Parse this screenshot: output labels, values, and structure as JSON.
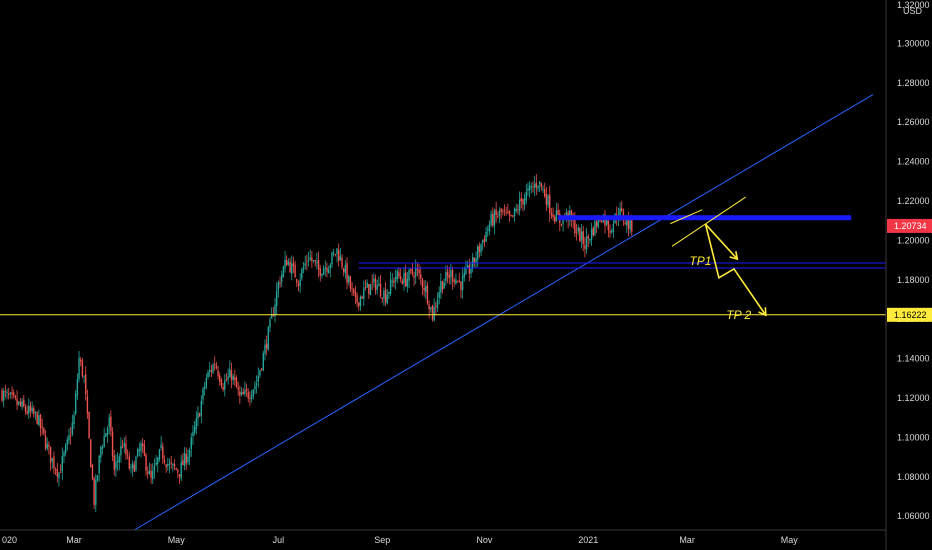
{
  "chart_data": {
    "type": "candlestick",
    "currency_label": "USD",
    "ylim": [
      1.053,
      1.322
    ],
    "y_ticks": [
      "1.06000",
      "1.08000",
      "1.10000",
      "1.12000",
      "1.14000",
      "1.16000",
      "1.18000",
      "1.20000",
      "1.22000",
      "1.24000",
      "1.26000",
      "1.28000",
      "1.30000"
    ],
    "y_top_partial_label": "1.32000",
    "x_labels": [
      {
        "label": "020",
        "t": 0
      },
      {
        "label": "Mar",
        "t": 43
      },
      {
        "label": "May",
        "t": 104
      },
      {
        "label": "Jul",
        "t": 165
      },
      {
        "label": "Sep",
        "t": 227
      },
      {
        "label": "Nov",
        "t": 288
      },
      {
        "label": "2021",
        "t": 350
      },
      {
        "label": "Mar",
        "t": 409
      },
      {
        "label": "May",
        "t": 470
      }
    ],
    "price_badges": [
      {
        "label": "1.20734",
        "value": 1.20734,
        "color": "#f23645"
      },
      {
        "label": "1.16222",
        "value": 1.16222,
        "color": "#ffeb3b"
      }
    ],
    "colors": {
      "up": "#26a69a",
      "down": "#ef5350",
      "trendline": "#2962ff",
      "resistance": "#1a1aff",
      "level": "#ffeb3b",
      "annotation": "#ffeb3b"
    },
    "anchors": [
      {
        "t": 0,
        "p": 1.123
      },
      {
        "t": 10,
        "p": 1.117
      },
      {
        "t": 22,
        "p": 1.11
      },
      {
        "t": 30,
        "p": 1.09
      },
      {
        "t": 35,
        "p": 1.082
      },
      {
        "t": 40,
        "p": 1.096
      },
      {
        "t": 44,
        "p": 1.11
      },
      {
        "t": 47,
        "p": 1.14
      },
      {
        "t": 50,
        "p": 1.13
      },
      {
        "t": 53,
        "p": 1.098
      },
      {
        "t": 56,
        "p": 1.068
      },
      {
        "t": 60,
        "p": 1.095
      },
      {
        "t": 65,
        "p": 1.108
      },
      {
        "t": 68,
        "p": 1.083
      },
      {
        "t": 73,
        "p": 1.097
      },
      {
        "t": 78,
        "p": 1.082
      },
      {
        "t": 84,
        "p": 1.095
      },
      {
        "t": 90,
        "p": 1.078
      },
      {
        "t": 96,
        "p": 1.093
      },
      {
        "t": 101,
        "p": 1.085
      },
      {
        "t": 107,
        "p": 1.083
      },
      {
        "t": 113,
        "p": 1.094
      },
      {
        "t": 118,
        "p": 1.11
      },
      {
        "t": 123,
        "p": 1.13
      },
      {
        "t": 128,
        "p": 1.138
      },
      {
        "t": 133,
        "p": 1.127
      },
      {
        "t": 138,
        "p": 1.132
      },
      {
        "t": 143,
        "p": 1.12
      },
      {
        "t": 148,
        "p": 1.122
      },
      {
        "t": 153,
        "p": 1.128
      },
      {
        "t": 158,
        "p": 1.145
      },
      {
        "t": 162,
        "p": 1.16
      },
      {
        "t": 166,
        "p": 1.178
      },
      {
        "t": 171,
        "p": 1.19
      },
      {
        "t": 178,
        "p": 1.18
      },
      {
        "t": 184,
        "p": 1.192
      },
      {
        "t": 190,
        "p": 1.185
      },
      {
        "t": 196,
        "p": 1.188
      },
      {
        "t": 201,
        "p": 1.195
      },
      {
        "t": 206,
        "p": 1.184
      },
      {
        "t": 212,
        "p": 1.168
      },
      {
        "t": 218,
        "p": 1.175
      },
      {
        "t": 224,
        "p": 1.178
      },
      {
        "t": 230,
        "p": 1.172
      },
      {
        "t": 236,
        "p": 1.182
      },
      {
        "t": 242,
        "p": 1.18
      },
      {
        "t": 248,
        "p": 1.185
      },
      {
        "t": 254,
        "p": 1.175
      },
      {
        "t": 258,
        "p": 1.162
      },
      {
        "t": 263,
        "p": 1.178
      },
      {
        "t": 269,
        "p": 1.183
      },
      {
        "t": 275,
        "p": 1.178
      },
      {
        "t": 282,
        "p": 1.188
      },
      {
        "t": 288,
        "p": 1.2
      },
      {
        "t": 293,
        "p": 1.21
      },
      {
        "t": 299,
        "p": 1.214
      },
      {
        "t": 305,
        "p": 1.21
      },
      {
        "t": 311,
        "p": 1.22
      },
      {
        "t": 316,
        "p": 1.225
      },
      {
        "t": 321,
        "p": 1.23
      },
      {
        "t": 325,
        "p": 1.224
      },
      {
        "t": 329,
        "p": 1.215
      },
      {
        "t": 334,
        "p": 1.21
      },
      {
        "t": 339,
        "p": 1.213
      },
      {
        "t": 344,
        "p": 1.205
      },
      {
        "t": 349,
        "p": 1.198
      },
      {
        "t": 354,
        "p": 1.206
      },
      {
        "t": 359,
        "p": 1.213
      },
      {
        "t": 364,
        "p": 1.206
      },
      {
        "t": 369,
        "p": 1.215
      },
      {
        "t": 373,
        "p": 1.21
      },
      {
        "t": 376,
        "p": 1.207
      }
    ],
    "trendline": {
      "t1": 79,
      "p1": 1.053,
      "t2": 520,
      "p2": 1.274
    },
    "levels": {
      "resistance": 1.2115,
      "mid1": 1.1885,
      "mid2": 1.186,
      "tp2": 1.16222
    },
    "annotations": [
      {
        "label": "TP1",
        "t": 408,
        "p": 1.1895
      },
      {
        "label": "TP 2",
        "t": 430,
        "p": 1.1622
      }
    ]
  }
}
